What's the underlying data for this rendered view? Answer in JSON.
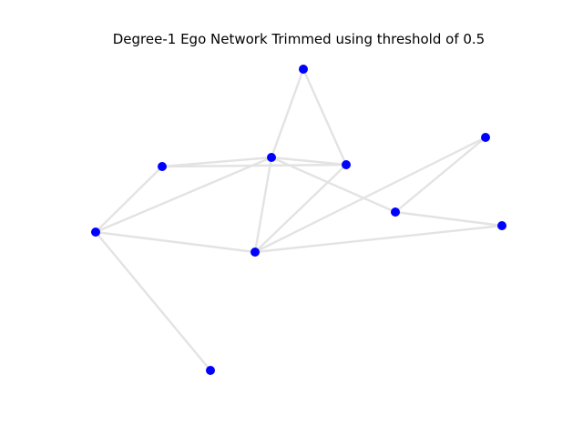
{
  "title": "Degree-1 Ego Network Trimmed using threshold of 0.5",
  "style": {
    "node_color": "#0000ff",
    "edge_color": "#e3e3e3",
    "background": "#ffffff"
  },
  "graph": {
    "nodes": [
      "n1",
      "n2",
      "n3",
      "n4",
      "n5",
      "n6",
      "n7",
      "n8",
      "n9",
      "n10"
    ],
    "edges": [
      [
        "n1",
        "n3"
      ],
      [
        "n1",
        "n4"
      ],
      [
        "n2",
        "n3"
      ],
      [
        "n2",
        "n4"
      ],
      [
        "n2",
        "n6"
      ],
      [
        "n3",
        "n4"
      ],
      [
        "n3",
        "n6"
      ],
      [
        "n3",
        "n8"
      ],
      [
        "n3",
        "n7"
      ],
      [
        "n4",
        "n8"
      ],
      [
        "n5",
        "n7"
      ],
      [
        "n5",
        "n8"
      ],
      [
        "n6",
        "n8"
      ],
      [
        "n6",
        "n9"
      ],
      [
        "n7",
        "n10"
      ],
      [
        "n8",
        "n10"
      ]
    ]
  }
}
